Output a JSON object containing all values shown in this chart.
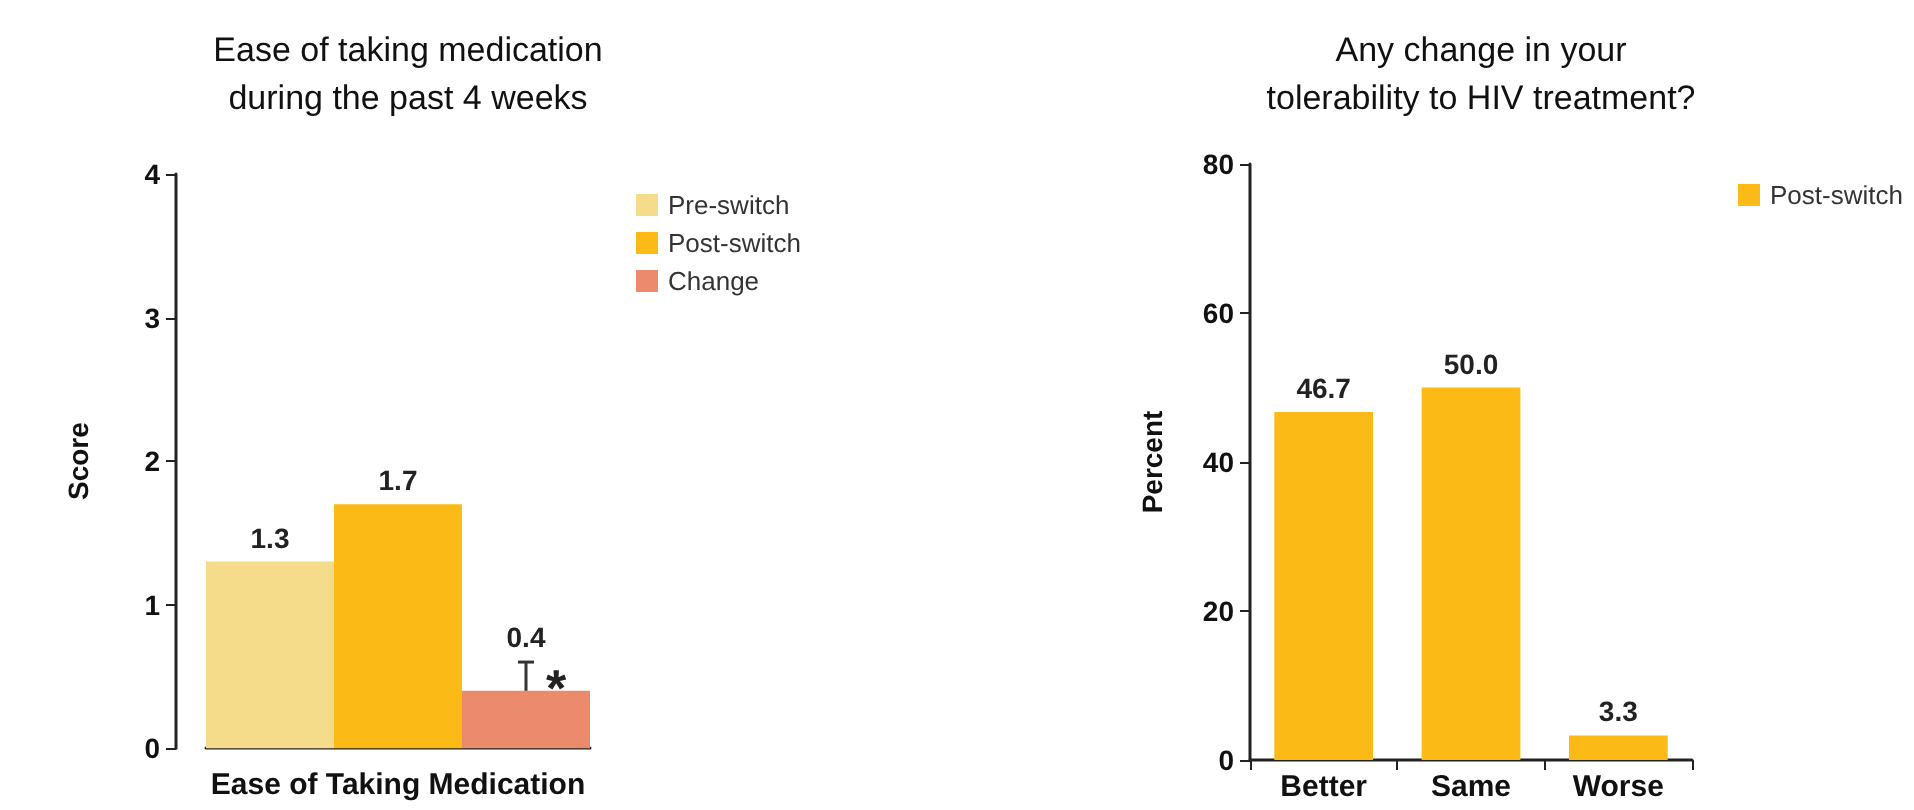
{
  "chart_data": [
    {
      "type": "bar",
      "title": "Ease of taking medication\nduring the past 4 weeks",
      "ylabel": "Score",
      "xlabel": "Ease of Taking Medication",
      "categories": [
        null,
        null,
        null
      ],
      "stacked": true,
      "series": [
        {
          "name": "Pre-switch",
          "color": "#f5dc8a",
          "values": [
            1.3,
            null,
            null
          ]
        },
        {
          "name": "Post-switch",
          "color": "#fbba16",
          "values": [
            null,
            1.7,
            null
          ]
        },
        {
          "name": "Change",
          "color": "#ec8a6c",
          "values": [
            null,
            null,
            0.4
          ],
          "errors": [
            null,
            null,
            [
              0.4,
              0.6
            ]
          ]
        }
      ],
      "ylim": [
        0,
        4
      ],
      "yticks": [
        0,
        1,
        2,
        3,
        4
      ],
      "data_labels": true,
      "legend": "top right",
      "grid": false,
      "annotations": [
        "*"
      ]
    },
    {
      "type": "bar",
      "title": "Any change in your\ntolerability to HIV treatment?",
      "ylabel": "Percent",
      "categories": [
        "Better",
        "Same",
        "Worse"
      ],
      "series": [
        {
          "name": "Post-switch",
          "color": "#fbba16",
          "values": [
            46.7,
            50.0,
            3.3
          ],
          "value_labels": [
            "46.7",
            "50.0",
            "3.3"
          ]
        }
      ],
      "ylim": [
        0,
        80
      ],
      "yticks": [
        0,
        20,
        40,
        60,
        80
      ],
      "data_labels": true,
      "legend": "top right",
      "grid": false
    }
  ]
}
